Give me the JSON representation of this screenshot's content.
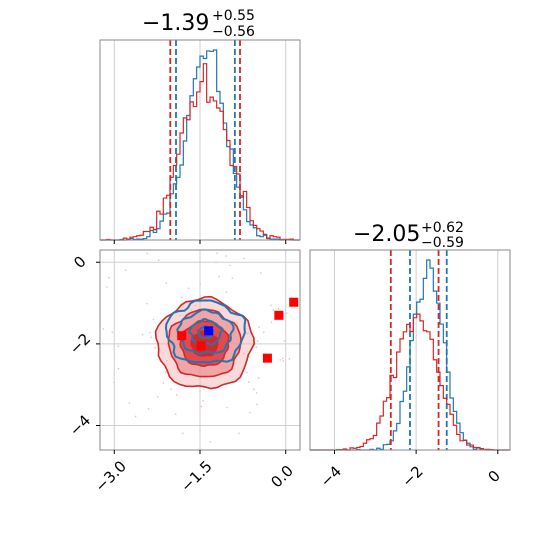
{
  "chart_data": [
    {
      "type": "histogram",
      "panel": "marginal-param-1",
      "title": {
        "median": "−1.39",
        "upper": "+0.55",
        "lower": "−0.56"
      },
      "xlim": [
        -3.25,
        0.25
      ],
      "grid": true,
      "series": [
        {
          "color": "#1f77b4",
          "mean": -1.39,
          "sd": 0.36,
          "quantiles": [
            -1.92,
            -0.89
          ]
        },
        {
          "color": "#d62728",
          "mean": -1.42,
          "sd": 0.42,
          "quantiles": [
            -2.02,
            -0.8
          ]
        }
      ]
    },
    {
      "type": "histogram",
      "panel": "marginal-param-2",
      "title": {
        "median": "−2.05",
        "upper": "+0.62",
        "lower": "−0.59"
      },
      "xlim": [
        -4.6,
        0.3
      ],
      "xticks": [
        "−4",
        "−2",
        "0"
      ],
      "grid": true,
      "series": [
        {
          "color": "#1f77b4",
          "mean": -1.7,
          "sd": 0.38,
          "quantiles": [
            -2.15,
            -1.25
          ]
        },
        {
          "color": "#d62728",
          "mean": -2.0,
          "sd": 0.52,
          "quantiles": [
            -2.62,
            -1.45
          ]
        }
      ]
    },
    {
      "type": "contour",
      "panel": "joint",
      "xlim": [
        -3.25,
        0.25
      ],
      "ylim": [
        -4.6,
        0.3
      ],
      "xticks": [
        "−3.0",
        "−1.5",
        "0.0"
      ],
      "yticks": [
        "0",
        "−2",
        "−4"
      ],
      "grid": true,
      "series": [
        {
          "color": "#d62728",
          "center": [
            -1.42,
            -2.0
          ],
          "spread": [
            0.42,
            0.55
          ],
          "style": "filled-contours"
        },
        {
          "color": "#1f77b4",
          "center": [
            -1.4,
            -1.72
          ],
          "spread": [
            0.36,
            0.4
          ],
          "style": "line-contours"
        }
      ],
      "markers": [
        {
          "x": -1.82,
          "y": -1.8,
          "color": "#ff0000"
        },
        {
          "x": -1.48,
          "y": -2.05,
          "color": "#ff0000"
        },
        {
          "x": -0.12,
          "y": -1.3,
          "color": "#ff0000"
        },
        {
          "x": 0.14,
          "y": -0.98,
          "color": "#ff0000"
        },
        {
          "x": -0.32,
          "y": -2.35,
          "color": "#ff0000"
        },
        {
          "x": -1.35,
          "y": -1.68,
          "color": "#0000ff"
        }
      ]
    }
  ]
}
